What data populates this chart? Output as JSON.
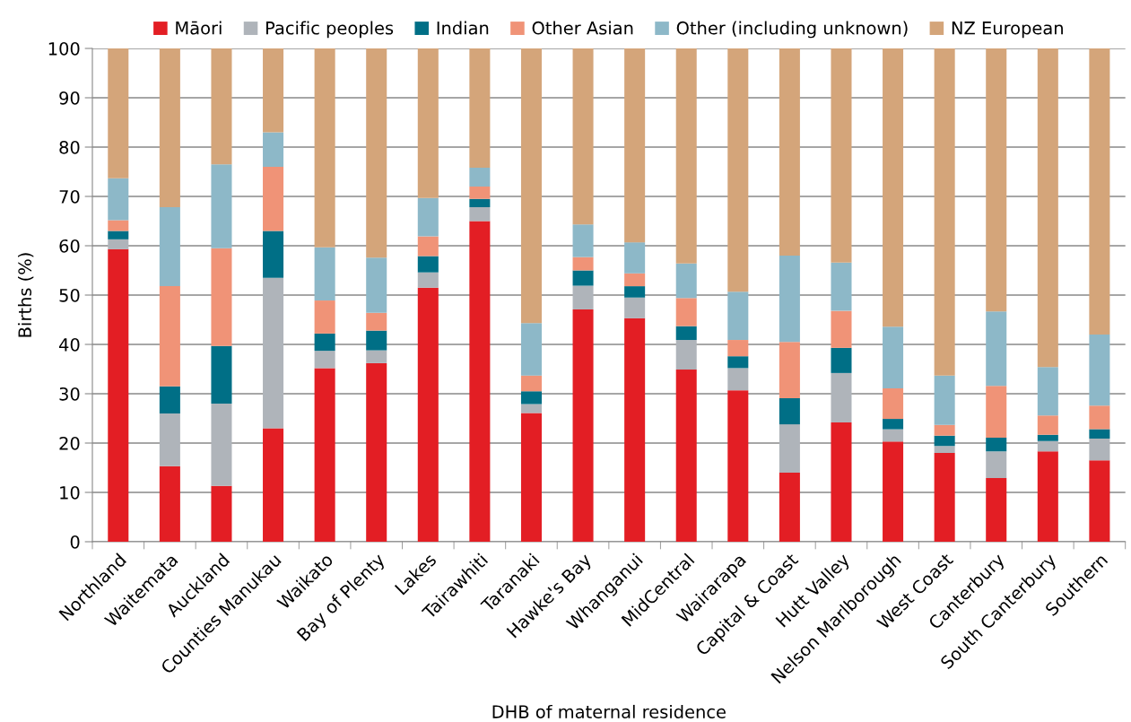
{
  "chart_data": {
    "type": "bar",
    "stacked": true,
    "xlabel": "DHB of maternal residence",
    "ylabel": "Births (%)",
    "categories": [
      "Northland",
      "Waitemata",
      "Auckland",
      "Counties Manukau",
      "Waikato",
      "Bay of Plenty",
      "Lakes",
      "Tairawhiti",
      "Taranaki",
      "Hawke's Bay",
      "Whanganui",
      "MidCentral",
      "Wairarapa",
      "Capital & Coast",
      "Hutt Valley",
      "Nelson Marlborough",
      "West Coast",
      "Canterbury",
      "South Canterbury",
      "Southern"
    ],
    "series": [
      {
        "name": "Māori",
        "color": "#e31e24",
        "values": [
          59.3,
          15.3,
          11.3,
          23.0,
          35.2,
          36.2,
          51.5,
          65.0,
          26.1,
          47.1,
          45.3,
          34.9,
          30.7,
          14.0,
          24.2,
          20.3,
          18.0,
          12.9,
          18.3,
          16.5
        ]
      },
      {
        "name": "Pacific peoples",
        "color": "#afb4ba",
        "values": [
          2.0,
          10.7,
          16.7,
          30.5,
          3.5,
          2.6,
          3.1,
          2.8,
          1.8,
          4.8,
          4.2,
          6.0,
          4.5,
          9.8,
          10.0,
          2.5,
          1.4,
          5.4,
          2.1,
          4.4
        ]
      },
      {
        "name": "Indian",
        "color": "#006f86",
        "values": [
          1.7,
          5.5,
          11.7,
          9.5,
          3.5,
          4.0,
          3.3,
          1.7,
          2.6,
          3.1,
          2.3,
          2.8,
          2.4,
          5.3,
          5.1,
          2.1,
          2.1,
          2.8,
          1.3,
          1.9
        ]
      },
      {
        "name": "Other Asian",
        "color": "#f09377",
        "values": [
          2.2,
          20.3,
          19.8,
          13.0,
          6.7,
          3.6,
          4.0,
          2.5,
          3.2,
          2.7,
          2.6,
          5.7,
          3.3,
          11.4,
          7.5,
          6.2,
          2.2,
          10.5,
          3.9,
          4.8
        ]
      },
      {
        "name": "Other (including unknown)",
        "color": "#8db8c8",
        "values": [
          8.5,
          16.0,
          17.0,
          7.0,
          10.8,
          11.2,
          7.8,
          3.8,
          10.6,
          6.6,
          6.3,
          7.0,
          9.8,
          17.5,
          9.8,
          12.5,
          10.0,
          15.1,
          9.8,
          14.4
        ]
      },
      {
        "name": "NZ European",
        "color": "#d4a57a",
        "values": [
          26.3,
          32.2,
          23.5,
          17.0,
          40.3,
          42.4,
          30.3,
          24.2,
          55.7,
          35.7,
          39.3,
          43.6,
          49.3,
          42.0,
          43.4,
          56.4,
          66.3,
          53.3,
          64.6,
          58.0
        ]
      }
    ],
    "ylim": [
      0,
      100
    ],
    "yticks": [
      0,
      10,
      20,
      30,
      40,
      50,
      60,
      70,
      80,
      90,
      100
    ],
    "grid": "y",
    "legend": "top"
  }
}
